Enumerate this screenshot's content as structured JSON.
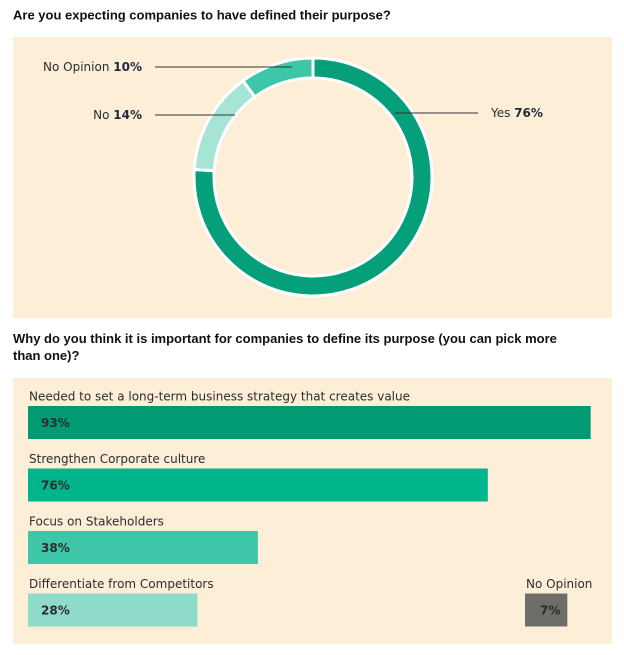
{
  "chart_data": [
    {
      "type": "donut",
      "title": "Are you expecting companies to have defined their purpose?",
      "categories": [
        "Yes",
        "No",
        "No Opinion"
      ],
      "values": [
        76,
        14,
        10
      ],
      "value_labels": [
        "76%",
        "14%",
        "10%"
      ],
      "colors": [
        "#05a07a",
        "#a6e5d5",
        "#3ec6a8"
      ]
    },
    {
      "type": "hbar",
      "title": "Why do you think it is important for companies to define its purpose (you can pick more than one)?",
      "categories": [
        "Needed to set a long-term business strategy that creates value",
        "Strengthen Corporate culture",
        "Focus on Stakeholders",
        "Differentiate from Competitors",
        "No Opinion"
      ],
      "values": [
        93,
        76,
        38,
        28,
        7
      ],
      "value_labels": [
        "93%",
        "76%",
        "38%",
        "28%",
        "7%"
      ],
      "colors": [
        "#009b72",
        "#00b48c",
        "#3ec6a9",
        "#8ddbc8",
        "#6d6e6a"
      ],
      "xlim": [
        0,
        100
      ]
    }
  ]
}
